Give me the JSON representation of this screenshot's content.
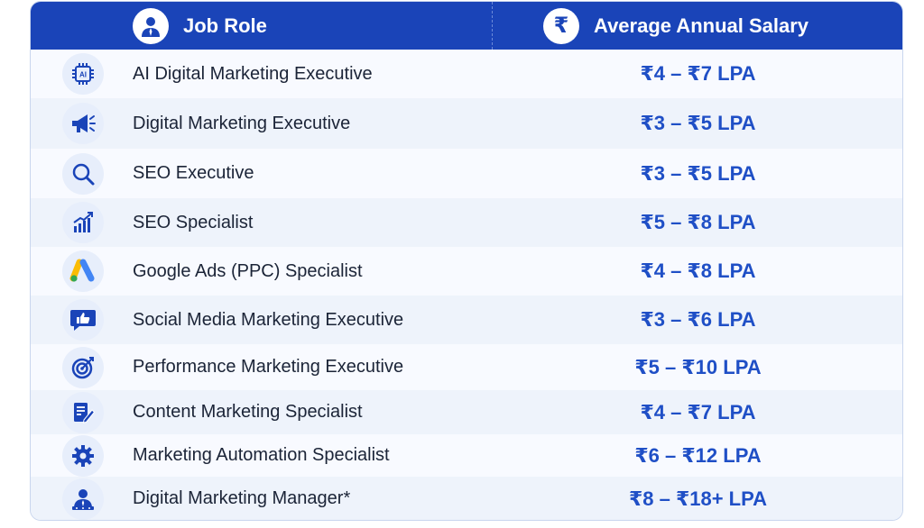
{
  "header": {
    "role_label": "Job Role",
    "salary_label": "Average Annual Salary",
    "role_icon": "person-icon",
    "salary_icon": "rupee-icon",
    "salary_symbol": "₹"
  },
  "colors": {
    "header_bg": "#1a44b8",
    "salary_text": "#1f4fc6",
    "row_alt": "#eef3fb"
  },
  "rows": [
    {
      "role": "AI Digital Marketing Executive",
      "salary": "₹4 – ₹7 LPA",
      "icon": "ai-chip-icon",
      "icon_text": "AI"
    },
    {
      "role": "Digital Marketing Executive",
      "salary": "₹3 – ₹5 LPA",
      "icon": "megaphone-icon"
    },
    {
      "role": "SEO Executive",
      "salary": "₹3 – ₹5 LPA",
      "icon": "magnifier-icon"
    },
    {
      "role": "SEO Specialist",
      "salary": "₹5 – ₹8 LPA",
      "icon": "growth-chart-icon"
    },
    {
      "role": "Google Ads (PPC) Specialist",
      "salary": "₹4 – ₹8 LPA",
      "icon": "google-ads-icon"
    },
    {
      "role": "Social Media Marketing Executive",
      "salary": "₹3 – ₹6 LPA",
      "icon": "thumbs-up-icon"
    },
    {
      "role": "Performance Marketing Executive",
      "salary": "₹5 – ₹10 LPA",
      "icon": "target-icon"
    },
    {
      "role": "Content Marketing Specialist",
      "salary": "₹4 – ₹7 LPA",
      "icon": "document-pen-icon"
    },
    {
      "role": "Marketing Automation Specialist",
      "salary": "₹6 – ₹12 LPA",
      "icon": "gear-icon"
    },
    {
      "role": "Digital Marketing Manager*",
      "salary": "₹8 – ₹18+ LPA",
      "icon": "manager-icon"
    }
  ]
}
